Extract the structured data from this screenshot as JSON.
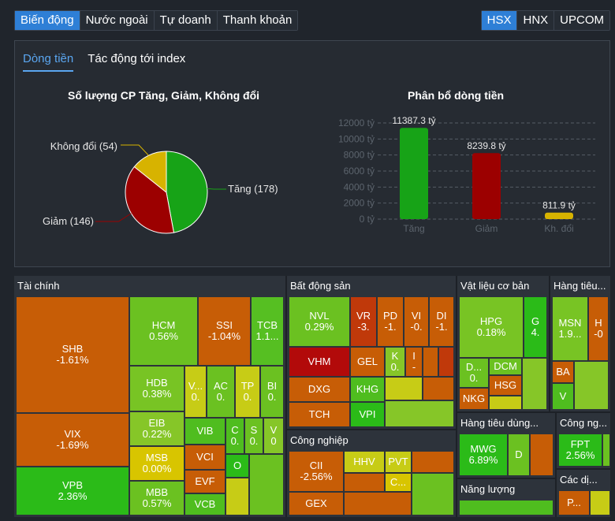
{
  "top_tabs": [
    "Biến động",
    "Nước ngoài",
    "Tự doanh",
    "Thanh khoản"
  ],
  "exchange_tabs": [
    "HSX",
    "HNX",
    "UPCOM"
  ],
  "sub_tabs": [
    "Dòng tiền",
    "Tác động tới index"
  ],
  "colors": {
    "up": "#17a317",
    "down": "#9c0000",
    "flat": "#d7b300",
    "accent": "#2e7fd6"
  },
  "chart_data": [
    {
      "type": "pie",
      "title": "Số lượng CP Tăng, Giảm, Không đổi",
      "slices": [
        {
          "name": "Tăng",
          "value": 178,
          "label": "Tăng (178)",
          "color": "#17a317"
        },
        {
          "name": "Giảm",
          "value": 146,
          "label": "Giảm (146)",
          "color": "#9c0000"
        },
        {
          "name": "Không đổi",
          "value": 54,
          "label": "Không đổi (54)",
          "color": "#d7b300"
        }
      ]
    },
    {
      "type": "bar",
      "title": "Phân bổ dòng tiền",
      "categories": [
        "Tăng",
        "Giảm",
        "Kh. đổi"
      ],
      "values": [
        11387.3,
        8239.8,
        811.9
      ],
      "data_labels": [
        "11387.3 tỷ",
        "8239.8 tỷ",
        "811.9 tỷ"
      ],
      "colors": [
        "#17a317",
        "#9c0000",
        "#d7b300"
      ],
      "yticks": [
        "0 tỷ",
        "2000 tỷ",
        "4000 tỷ",
        "6000 tỷ",
        "8000 tỷ",
        "10000 tỷ",
        "12000 tỷ"
      ],
      "ylim": [
        0,
        12000
      ],
      "grid": true
    }
  ],
  "treemap": {
    "sections": [
      "Tài chính",
      "Bất động sản",
      "Vật liệu cơ bản",
      "Hàng tiêu...",
      "Công nghiệp",
      "Hàng tiêu dùng...",
      "Công ng...",
      "Năng lượng",
      "Các dị..."
    ],
    "cells": [
      [
        "SHB",
        "-1.61%"
      ],
      [
        "VIX",
        "-1.69%"
      ],
      [
        "VPB",
        "2.36%"
      ],
      [
        "HCM",
        "0.56%"
      ],
      [
        "SSI",
        "-1.04%"
      ],
      [
        "TCB",
        "1.1..."
      ],
      [
        "HDB",
        "0.38%"
      ],
      [
        "EIB",
        "0.22%"
      ],
      [
        "MSB",
        "0.00%"
      ],
      [
        "MBB",
        "0.57%"
      ],
      [
        "V...",
        "0."
      ],
      [
        "AC",
        "0."
      ],
      [
        "TP",
        "0."
      ],
      [
        "BI",
        "0."
      ],
      [
        "VIB",
        ""
      ],
      [
        "C",
        "0."
      ],
      [
        "S",
        "0."
      ],
      [
        "V",
        "0"
      ],
      [
        "VCI",
        ""
      ],
      [
        "EVF",
        ""
      ],
      [
        "VCB",
        ""
      ],
      [
        "O",
        ""
      ],
      [
        "NVL",
        "0.29%"
      ],
      [
        "VR",
        "-3."
      ],
      [
        "PD",
        "-1."
      ],
      [
        "VI",
        "-0."
      ],
      [
        "DI",
        "-1."
      ],
      [
        "VHM",
        ""
      ],
      [
        "GEL",
        ""
      ],
      [
        "K",
        "0."
      ],
      [
        "I",
        "-"
      ],
      [
        "DXG",
        ""
      ],
      [
        "KHG",
        ""
      ],
      [
        "TCH",
        ""
      ],
      [
        "VPI",
        ""
      ],
      [
        "CII",
        "-2.56%"
      ],
      [
        "HHV",
        ""
      ],
      [
        "PVT",
        ""
      ],
      [
        "C...",
        ""
      ],
      [
        "GEX",
        ""
      ],
      [
        "HPG",
        "0.18%"
      ],
      [
        "G",
        "4."
      ],
      [
        "D...",
        "0."
      ],
      [
        "DCM",
        ""
      ],
      [
        "HSG",
        ""
      ],
      [
        "NKG",
        ""
      ],
      [
        "MSN",
        "1.9..."
      ],
      [
        "H",
        "-0"
      ],
      [
        "BA",
        ""
      ],
      [
        "V",
        ""
      ],
      [
        "MWG",
        "6.89%"
      ],
      [
        "D",
        ""
      ],
      [
        "FPT",
        "2.56%"
      ],
      [
        "P...",
        ""
      ]
    ]
  }
}
